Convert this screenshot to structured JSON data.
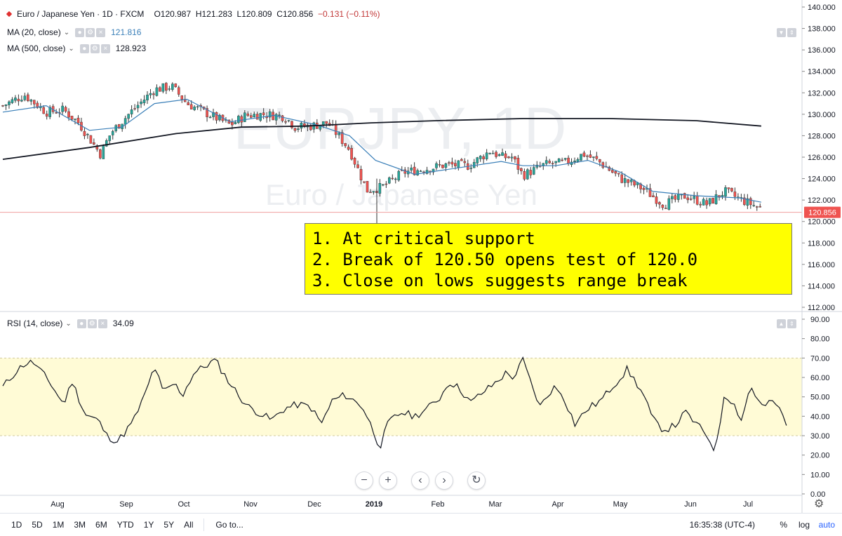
{
  "header": {
    "symbol_title": "Euro / Japanese Yen · 1D · FXCM",
    "open": "O120.987",
    "high": "H121.283",
    "low": "L120.809",
    "close": "C120.856",
    "change": "−0.131 (−0.11%)",
    "ma20_label": "MA (20, close)",
    "ma20_value": "121.816",
    "ma500_label": "MA (500, close)",
    "ma500_value": "128.923",
    "rsi_label": "RSI (14, close)",
    "rsi_value": "34.09"
  },
  "watermark": {
    "symbol": "EURJPY, 1D",
    "name": "Euro / Japanese Yen"
  },
  "annotation": {
    "line1": "1. At critical support",
    "line2": "2. Break of 120.50 opens test of 120.0",
    "line3": "3. Close on lows suggests range break"
  },
  "price_badge": "120.856",
  "bottom": {
    "timeframes": [
      "1D",
      "5D",
      "1M",
      "3M",
      "6M",
      "YTD",
      "1Y",
      "5Y",
      "All"
    ],
    "goto": "Go to...",
    "time": "16:35:38 (UTC-4)",
    "percent": "%",
    "log": "log",
    "auto": "auto"
  },
  "colors": {
    "up": "#26a69a",
    "down": "#ef5350",
    "ma20": "#3a7fb8",
    "ma500": "#131722",
    "rsi_band": "#fffbd6",
    "annotation_bg": "#ffff00",
    "price_line": "#f0a0a0",
    "price_badge": "#ef5350"
  },
  "chart_data": [
    {
      "type": "candlestick",
      "name": "EURJPY, 1D",
      "x_ticks": [
        "Aug",
        "Sep",
        "Oct",
        "Nov",
        "Dec",
        "2019",
        "Feb",
        "Mar",
        "Apr",
        "May",
        "Jun",
        "Jul"
      ],
      "y_ticks": [
        112,
        114,
        116,
        118,
        120,
        122,
        124,
        126,
        128,
        130,
        132,
        134,
        136,
        138,
        140
      ],
      "y_tick_labels": [
        "112.000",
        "114.000",
        "116.000",
        "118.000",
        "120.000",
        "122.000",
        "124.000",
        "126.000",
        "128.000",
        "130.000",
        "132.000",
        "134.000",
        "136.000",
        "138.000",
        "140.000"
      ],
      "ylim": [
        111.5,
        140.5
      ],
      "close_path": [
        [
          0,
          130.8
        ],
        [
          10,
          131.8
        ],
        [
          20,
          130.2
        ],
        [
          28,
          130.4
        ],
        [
          35,
          129.2
        ],
        [
          45,
          126.3
        ],
        [
          50,
          128.3
        ],
        [
          60,
          130.4
        ],
        [
          70,
          132.3
        ],
        [
          78,
          132.6
        ],
        [
          85,
          131.0
        ],
        [
          95,
          130.0
        ],
        [
          105,
          129.0
        ],
        [
          112,
          129.9
        ],
        [
          120,
          130.0
        ],
        [
          130,
          129.8
        ],
        [
          135,
          128.8
        ],
        [
          142,
          128.9
        ],
        [
          150,
          129.2
        ],
        [
          160,
          126.7
        ],
        [
          168,
          122.9
        ],
        [
          175,
          123.2
        ],
        [
          185,
          124.6
        ],
        [
          195,
          124.9
        ],
        [
          205,
          125.3
        ],
        [
          215,
          125.2
        ],
        [
          225,
          126.6
        ],
        [
          230,
          126.0
        ],
        [
          235,
          126.0
        ],
        [
          240,
          124.3
        ],
        [
          250,
          125.3
        ],
        [
          260,
          125.5
        ],
        [
          268,
          126.3
        ],
        [
          275,
          125.6
        ],
        [
          285,
          124.0
        ],
        [
          295,
          123.1
        ],
        [
          305,
          121.6
        ],
        [
          315,
          122.4
        ],
        [
          325,
          121.6
        ],
        [
          333,
          122.8
        ],
        [
          340,
          122.1
        ],
        [
          350,
          121.2
        ]
      ],
      "ma20_path": [
        [
          0,
          130.2
        ],
        [
          20,
          130.8
        ],
        [
          40,
          128.5
        ],
        [
          55,
          128.8
        ],
        [
          70,
          131.0
        ],
        [
          85,
          131.4
        ],
        [
          105,
          129.3
        ],
        [
          125,
          129.9
        ],
        [
          145,
          129.0
        ],
        [
          160,
          128.0
        ],
        [
          172,
          125.7
        ],
        [
          190,
          124.4
        ],
        [
          210,
          125.0
        ],
        [
          230,
          125.6
        ],
        [
          240,
          125.2
        ],
        [
          255,
          125.2
        ],
        [
          270,
          125.7
        ],
        [
          285,
          124.6
        ],
        [
          300,
          122.8
        ],
        [
          320,
          122.4
        ],
        [
          340,
          122.2
        ],
        [
          350,
          121.8
        ]
      ],
      "ma500_path": [
        [
          0,
          125.8
        ],
        [
          40,
          126.9
        ],
        [
          80,
          128.2
        ],
        [
          110,
          128.8
        ],
        [
          140,
          128.9
        ],
        [
          170,
          129.2
        ],
        [
          200,
          129.4
        ],
        [
          240,
          129.6
        ],
        [
          280,
          129.6
        ],
        [
          320,
          129.4
        ],
        [
          350,
          128.9
        ]
      ],
      "last_price": 120.856
    },
    {
      "type": "line",
      "name": "RSI (14, close)",
      "ylim": [
        0,
        90
      ],
      "y_ticks": [
        0,
        10,
        20,
        30,
        40,
        50,
        60,
        70,
        80,
        90
      ],
      "y_tick_labels": [
        "0.00",
        "10.00",
        "20.00",
        "30.00",
        "40.00",
        "50.00",
        "60.00",
        "70.00",
        "80.00",
        "90.00"
      ],
      "band": [
        30,
        70
      ],
      "values": [
        [
          0,
          55
        ],
        [
          6,
          63
        ],
        [
          10,
          67
        ],
        [
          14,
          68
        ],
        [
          22,
          57
        ],
        [
          28,
          46
        ],
        [
          32,
          58
        ],
        [
          38,
          41
        ],
        [
          44,
          38
        ],
        [
          48,
          30
        ],
        [
          53,
          27
        ],
        [
          60,
          37
        ],
        [
          66,
          52
        ],
        [
          70,
          66
        ],
        [
          74,
          52
        ],
        [
          79,
          57
        ],
        [
          83,
          51
        ],
        [
          88,
          62
        ],
        [
          92,
          65
        ],
        [
          98,
          69
        ],
        [
          103,
          60
        ],
        [
          108,
          52
        ],
        [
          113,
          45
        ],
        [
          118,
          42
        ],
        [
          124,
          38
        ],
        [
          130,
          44
        ],
        [
          136,
          46
        ],
        [
          142,
          45
        ],
        [
          147,
          36
        ],
        [
          152,
          48
        ],
        [
          158,
          51
        ],
        [
          166,
          45
        ],
        [
          170,
          35
        ],
        [
          174,
          24
        ],
        [
          178,
          37
        ],
        [
          184,
          42
        ],
        [
          190,
          40
        ],
        [
          196,
          44
        ],
        [
          202,
          50
        ],
        [
          206,
          58
        ],
        [
          211,
          54
        ],
        [
          216,
          47
        ],
        [
          220,
          51
        ],
        [
          226,
          56
        ],
        [
          232,
          62
        ],
        [
          236,
          60
        ],
        [
          240,
          69
        ],
        [
          244,
          56
        ],
        [
          248,
          45
        ],
        [
          254,
          55
        ],
        [
          258,
          52
        ],
        [
          264,
          36
        ],
        [
          270,
          44
        ],
        [
          276,
          48
        ],
        [
          281,
          55
        ],
        [
          285,
          60
        ],
        [
          288,
          64
        ],
        [
          292,
          58
        ],
        [
          296,
          50
        ],
        [
          300,
          38
        ],
        [
          305,
          33
        ],
        [
          310,
          35
        ],
        [
          315,
          42
        ],
        [
          320,
          36
        ],
        [
          325,
          30
        ],
        [
          329,
          22
        ],
        [
          333,
          52
        ],
        [
          337,
          47
        ],
        [
          341,
          38
        ],
        [
          345,
          56
        ],
        [
          350,
          45
        ],
        [
          353,
          46
        ],
        [
          356,
          48
        ],
        [
          360,
          40
        ],
        [
          362,
          34
        ]
      ]
    }
  ]
}
